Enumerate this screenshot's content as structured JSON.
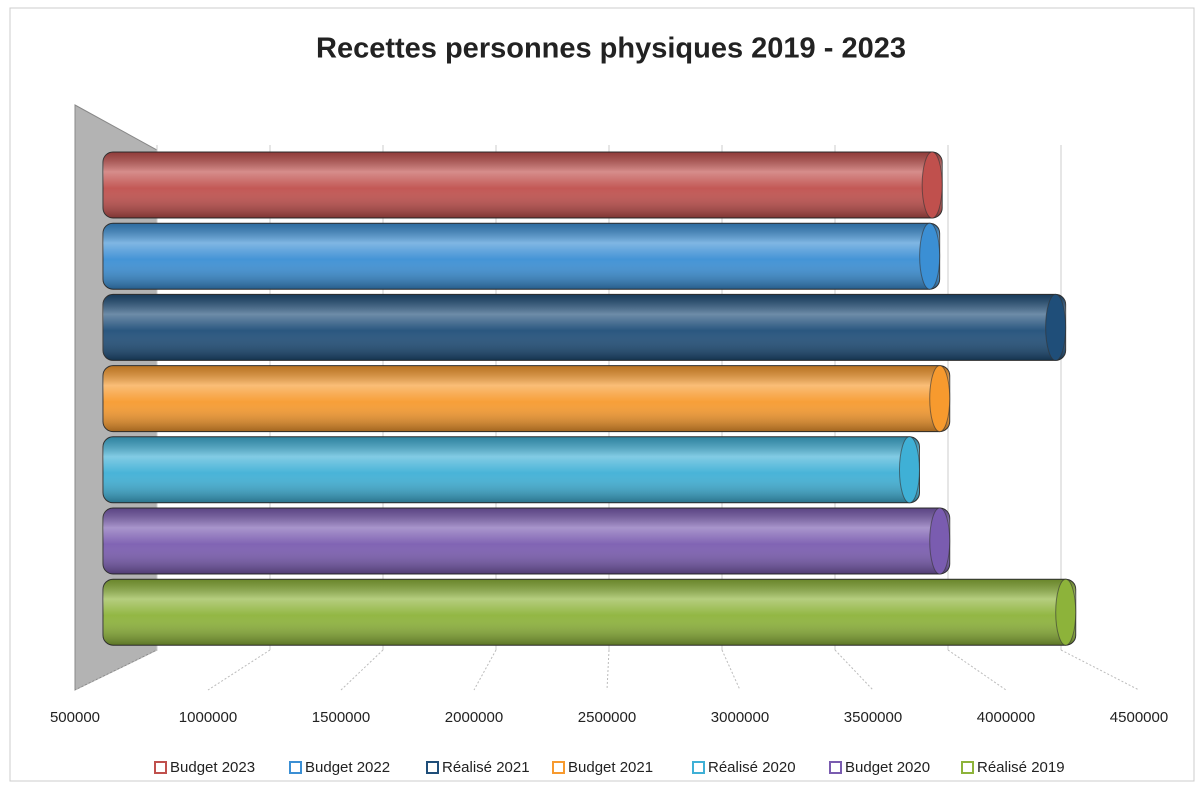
{
  "chart_data": {
    "type": "bar",
    "orientation": "horizontal",
    "title": "Recettes personnes physiques 2019 - 2023",
    "series": [
      {
        "name": "Budget 2023",
        "color": "#c0504d",
        "values": [
          3830000
        ]
      },
      {
        "name": "Budget 2022",
        "color": "#3b8fd4",
        "values": [
          3820000
        ]
      },
      {
        "name": "Réalisé 2021",
        "color": "#1f4e79",
        "values": [
          4320000
        ]
      },
      {
        "name": "Budget 2021",
        "color": "#f79a2e",
        "values": [
          3860000
        ]
      },
      {
        "name": "Réalisé 2020",
        "color": "#3fb0d6",
        "values": [
          3740000
        ]
      },
      {
        "name": "Budget 2020",
        "color": "#7a5cb0",
        "values": [
          3860000
        ]
      },
      {
        "name": "Réalisé 2019",
        "color": "#8db33a",
        "values": [
          4360000
        ]
      }
    ],
    "xlim": [
      500000,
      4500000
    ],
    "xticks": [
      500000,
      1000000,
      1500000,
      2000000,
      2500000,
      3000000,
      3500000,
      4000000,
      4500000
    ],
    "grid": true,
    "legend": "bottom"
  }
}
